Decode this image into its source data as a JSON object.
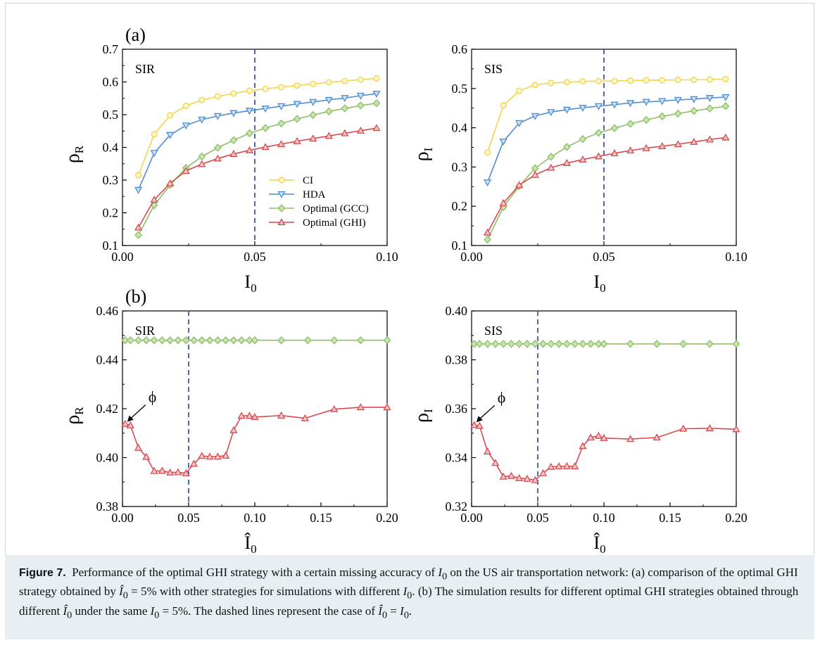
{
  "caption": {
    "label": "Figure 7.",
    "text_1": "Performance of the optimal GHI strategy with a certain missing accuracy of ",
    "sym_I0": "I",
    "sub_0": "0",
    "text_2": " on the US air transportation network: (a) comparison of the optimal GHI strategy obtained by ",
    "text_3": " = 5% with other strategies for simulations with different ",
    "text_4": ". (b) The simulation results for different optimal GHI strategies obtained through different ",
    "text_5": " under the same ",
    "text_6": " = 5%. The dashed lines represent the case of ",
    "text_7": " = ",
    "text_8": "."
  },
  "colors": {
    "CI": "#f2d44e",
    "HDA": "#4d8fd6",
    "GCC": "#8cc063",
    "GHI": "#d94a4f",
    "dash": "#2f3f8f"
  },
  "chart_data": [
    {
      "id": "a-SIR",
      "type": "line",
      "panel_label": "(a)",
      "label": "SIR",
      "xlabel": "I",
      "xlabel_sub": "0",
      "ylabel": "ρ",
      "ylabel_sub": "R",
      "xlim": [
        0.0,
        0.1
      ],
      "ylim": [
        0.1,
        0.7
      ],
      "xticks": [
        "0.00",
        "0.05",
        "0.10"
      ],
      "yticks": [
        "0.1",
        "0.2",
        "0.3",
        "0.4",
        "0.5",
        "0.6",
        "0.7"
      ],
      "vline": 0.05,
      "legend_position": "center-right",
      "x": [
        0.006,
        0.012,
        0.018,
        0.024,
        0.03,
        0.036,
        0.042,
        0.048,
        0.054,
        0.06,
        0.066,
        0.072,
        0.078,
        0.084,
        0.09,
        0.096
      ],
      "series": [
        {
          "name": "CI",
          "key": "CI",
          "marker": "circle",
          "values": [
            0.315,
            0.44,
            0.498,
            0.527,
            0.545,
            0.556,
            0.565,
            0.573,
            0.579,
            0.584,
            0.589,
            0.594,
            0.599,
            0.603,
            0.607,
            0.611
          ]
        },
        {
          "name": "HDA",
          "key": "HDA",
          "marker": "tri-down",
          "values": [
            0.27,
            0.383,
            0.438,
            0.467,
            0.485,
            0.496,
            0.505,
            0.512,
            0.519,
            0.526,
            0.533,
            0.539,
            0.545,
            0.551,
            0.558,
            0.564
          ]
        },
        {
          "name": "Optimal (GCC)",
          "key": "GCC",
          "marker": "diamond",
          "values": [
            0.132,
            0.223,
            0.285,
            0.337,
            0.372,
            0.399,
            0.422,
            0.443,
            0.459,
            0.473,
            0.487,
            0.499,
            0.51,
            0.519,
            0.528,
            0.535
          ]
        },
        {
          "name": "Optimal (GHI)",
          "key": "GHI",
          "marker": "tri-up",
          "values": [
            0.155,
            0.24,
            0.29,
            0.328,
            0.349,
            0.366,
            0.38,
            0.391,
            0.401,
            0.41,
            0.419,
            0.427,
            0.435,
            0.443,
            0.451,
            0.459
          ]
        }
      ]
    },
    {
      "id": "a-SIS",
      "type": "line",
      "label": "SIS",
      "xlabel": "I",
      "xlabel_sub": "0",
      "ylabel": "ρ",
      "ylabel_sub": "I",
      "xlim": [
        0.0,
        0.1
      ],
      "ylim": [
        0.1,
        0.6
      ],
      "xticks": [
        "0.00",
        "0.05",
        "0.10"
      ],
      "yticks": [
        "0.1",
        "0.2",
        "0.3",
        "0.4",
        "0.5",
        "0.6"
      ],
      "vline": 0.05,
      "x": [
        0.006,
        0.012,
        0.018,
        0.024,
        0.03,
        0.036,
        0.042,
        0.048,
        0.054,
        0.06,
        0.066,
        0.072,
        0.078,
        0.084,
        0.09,
        0.096
      ],
      "series": [
        {
          "key": "CI",
          "marker": "circle",
          "values": [
            0.337,
            0.457,
            0.494,
            0.509,
            0.514,
            0.516,
            0.518,
            0.519,
            0.519,
            0.52,
            0.521,
            0.521,
            0.522,
            0.522,
            0.523,
            0.524
          ]
        },
        {
          "key": "HDA",
          "marker": "tri-down",
          "values": [
            0.261,
            0.365,
            0.412,
            0.43,
            0.44,
            0.446,
            0.451,
            0.455,
            0.459,
            0.463,
            0.466,
            0.468,
            0.471,
            0.473,
            0.476,
            0.478
          ]
        },
        {
          "key": "GCC",
          "marker": "diamond",
          "values": [
            0.115,
            0.198,
            0.251,
            0.297,
            0.326,
            0.351,
            0.371,
            0.387,
            0.399,
            0.41,
            0.42,
            0.429,
            0.436,
            0.443,
            0.449,
            0.455
          ]
        },
        {
          "key": "GHI",
          "marker": "tri-up",
          "values": [
            0.133,
            0.208,
            0.254,
            0.28,
            0.298,
            0.31,
            0.319,
            0.327,
            0.335,
            0.342,
            0.348,
            0.353,
            0.358,
            0.364,
            0.37,
            0.375
          ]
        }
      ]
    },
    {
      "id": "b-SIR",
      "type": "line",
      "panel_label": "(b)",
      "label": "SIR",
      "xlabel": "Î",
      "xlabel_sub": "0",
      "ylabel": "ρ",
      "ylabel_sub": "R",
      "xlim": [
        0.0,
        0.2
      ],
      "ylim": [
        0.38,
        0.46
      ],
      "xticks": [
        "0.00",
        "0.05",
        "0.10",
        "0.15",
        "0.20"
      ],
      "yticks": [
        "0.38",
        "0.40",
        "0.42",
        "0.44",
        "0.46"
      ],
      "vline": 0.05,
      "annotation": {
        "text": "ϕ",
        "x": 0.002,
        "y": 0.4135
      },
      "series": [
        {
          "key": "GCC",
          "marker": "diamond",
          "x": [
            0.002,
            0.006,
            0.012,
            0.018,
            0.024,
            0.03,
            0.036,
            0.042,
            0.048,
            0.054,
            0.06,
            0.066,
            0.072,
            0.078,
            0.084,
            0.09,
            0.096,
            0.1,
            0.12,
            0.14,
            0.16,
            0.18,
            0.2
          ],
          "values": [
            0.448,
            0.448,
            0.448,
            0.448,
            0.448,
            0.448,
            0.448,
            0.448,
            0.448,
            0.448,
            0.448,
            0.448,
            0.448,
            0.448,
            0.448,
            0.448,
            0.448,
            0.448,
            0.448,
            0.448,
            0.448,
            0.448,
            0.448
          ]
        },
        {
          "key": "GHI",
          "marker": "tri-up",
          "x": [
            0.002,
            0.006,
            0.012,
            0.018,
            0.024,
            0.03,
            0.036,
            0.042,
            0.048,
            0.054,
            0.06,
            0.066,
            0.072,
            0.078,
            0.084,
            0.09,
            0.096,
            0.1,
            0.12,
            0.138,
            0.16,
            0.18,
            0.2
          ],
          "values": [
            0.4138,
            0.4132,
            0.404,
            0.4003,
            0.3945,
            0.3946,
            0.3939,
            0.394,
            0.3936,
            0.3975,
            0.4007,
            0.4004,
            0.4004,
            0.4008,
            0.4112,
            0.4171,
            0.4171,
            0.4166,
            0.4172,
            0.4161,
            0.4198,
            0.4206,
            0.4206
          ]
        }
      ]
    },
    {
      "id": "b-SIS",
      "type": "line",
      "label": "SIS",
      "xlabel": "Î",
      "xlabel_sub": "0",
      "ylabel": "ρ",
      "ylabel_sub": "I",
      "xlim": [
        0.0,
        0.2
      ],
      "ylim": [
        0.32,
        0.4
      ],
      "xticks": [
        "0.00",
        "0.05",
        "0.10",
        "0.15",
        "0.20"
      ],
      "yticks": [
        "0.32",
        "0.34",
        "0.36",
        "0.38",
        "0.40"
      ],
      "vline": 0.05,
      "annotation": {
        "text": "ϕ",
        "x": 0.002,
        "y": 0.3533
      },
      "series": [
        {
          "key": "GCC",
          "marker": "diamond",
          "x": [
            0.002,
            0.006,
            0.012,
            0.018,
            0.024,
            0.03,
            0.036,
            0.042,
            0.048,
            0.054,
            0.06,
            0.066,
            0.072,
            0.078,
            0.084,
            0.09,
            0.096,
            0.1,
            0.12,
            0.14,
            0.16,
            0.18,
            0.2
          ],
          "values": [
            0.3865,
            0.3865,
            0.3865,
            0.3865,
            0.3865,
            0.3865,
            0.3865,
            0.3865,
            0.3865,
            0.3865,
            0.3865,
            0.3865,
            0.3865,
            0.3865,
            0.3865,
            0.3865,
            0.3865,
            0.3865,
            0.3865,
            0.3865,
            0.3865,
            0.3865,
            0.3865
          ]
        },
        {
          "key": "GHI",
          "marker": "tri-up",
          "x": [
            0.002,
            0.006,
            0.012,
            0.018,
            0.024,
            0.03,
            0.036,
            0.042,
            0.048,
            0.054,
            0.06,
            0.066,
            0.072,
            0.078,
            0.084,
            0.09,
            0.096,
            0.1,
            0.12,
            0.14,
            0.16,
            0.18,
            0.2
          ],
          "values": [
            0.3533,
            0.353,
            0.3425,
            0.3378,
            0.3322,
            0.3325,
            0.3316,
            0.3313,
            0.3308,
            0.3336,
            0.3362,
            0.3364,
            0.3365,
            0.3364,
            0.3447,
            0.3482,
            0.3489,
            0.348,
            0.3476,
            0.3482,
            0.3518,
            0.352,
            0.3516
          ]
        }
      ]
    }
  ]
}
